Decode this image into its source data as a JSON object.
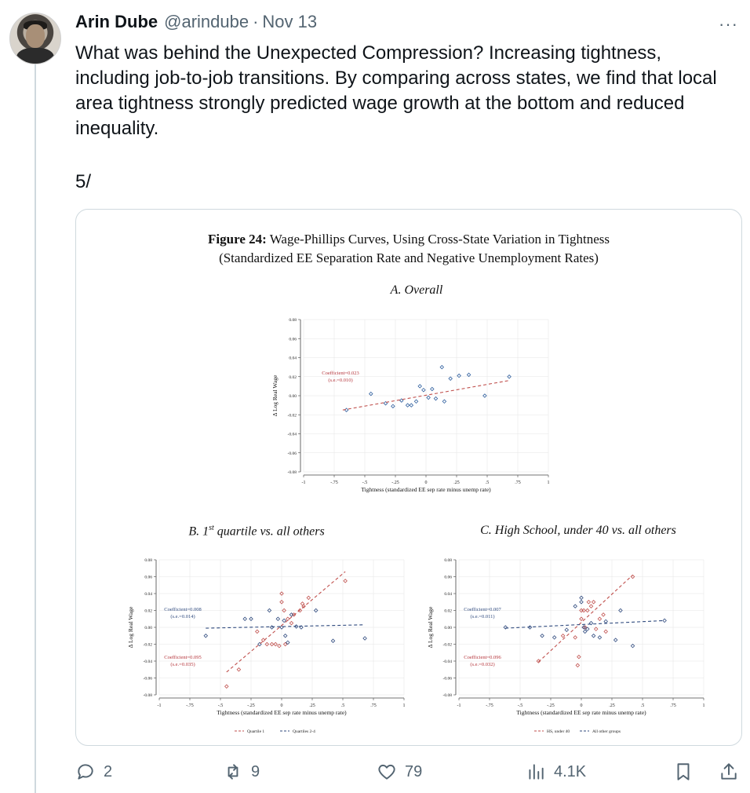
{
  "tweet": {
    "author_name": "Arin Dube",
    "handle": "@arindube",
    "separator": "·",
    "date": "Nov 13",
    "more_label": "···",
    "text_p1": "What was behind the Unexpected Compression? Increasing tightness, including job-to-job transitions. By comparing across states, we find that local area tightness strongly predicted wage growth at the bottom and reduced inequality.",
    "text_p2": "5/"
  },
  "figure": {
    "title_bold": "Figure 24:",
    "title_line1": " Wage-Phillips Curves, Using Cross-State Variation in Tightness",
    "title_line2": "(Standardized EE Separation Rate and Negative Unemployment Rates)",
    "panel_a_title": "A. Overall",
    "panel_b_title": "B. 1st quartile vs. all others",
    "panel_c_title": "C. High School, under 40 vs. all others"
  },
  "chart_data": [
    {
      "type": "scatter",
      "title": "A. Overall",
      "xlabel": "Tightness (standardized EE sep rate minus unemp rate)",
      "ylabel": "Δ Log Real Wage",
      "xlim": [
        -1,
        1
      ],
      "ylim": [
        -0.08,
        0.08
      ],
      "xticks": [
        "-1",
        "-.75",
        "-.5",
        "-.25",
        "0",
        ".25",
        ".5",
        ".75",
        "1"
      ],
      "yticks": [
        "-0.08",
        "-0.06",
        "-0.04",
        "-0.02",
        "0.00",
        "0.02",
        "0.04",
        "0.06",
        "0.08"
      ],
      "grid": true,
      "annotations": [
        {
          "text": "Coefficient=0.023",
          "color": "#b5343a"
        },
        {
          "text": "(s.e.=0.010)",
          "color": "#b5343a"
        }
      ],
      "series": [
        {
          "color": "#2f5f9e",
          "marker": "diamond",
          "points": [
            [
              -0.65,
              -0.015
            ],
            [
              -0.45,
              0.002
            ],
            [
              -0.33,
              -0.008
            ],
            [
              -0.27,
              -0.011
            ],
            [
              -0.2,
              -0.005
            ],
            [
              -0.15,
              -0.01
            ],
            [
              -0.12,
              -0.01
            ],
            [
              -0.08,
              -0.006
            ],
            [
              -0.05,
              0.01
            ],
            [
              -0.02,
              0.006
            ],
            [
              0.02,
              -0.002
            ],
            [
              0.05,
              0.007
            ],
            [
              0.08,
              -0.003
            ],
            [
              0.13,
              0.03
            ],
            [
              0.15,
              -0.006
            ],
            [
              0.2,
              0.018
            ],
            [
              0.27,
              0.021
            ],
            [
              0.35,
              0.022
            ],
            [
              0.48,
              0.0
            ],
            [
              0.68,
              0.02
            ]
          ]
        },
        {
          "type": "line",
          "color": "#c0504d",
          "dashed": true,
          "x": [
            -0.68,
            0.68
          ],
          "y": [
            -0.015,
            0.016
          ]
        }
      ]
    },
    {
      "type": "scatter",
      "title": "B. 1st quartile vs. all others",
      "xlabel": "Tightness (standardized EE sep rate minus unemp rate)",
      "ylabel": "Δ Log Real Wage",
      "xlim": [
        -1,
        1
      ],
      "ylim": [
        -0.08,
        0.08
      ],
      "xticks": [
        "-1",
        "-.75",
        "-.5",
        "-.25",
        "0",
        ".25",
        ".5",
        ".75",
        "1"
      ],
      "yticks": [
        "-0.08",
        "-0.06",
        "-0.04",
        "-0.02",
        "0.00",
        "0.02",
        "0.04",
        "0.06",
        "0.08"
      ],
      "grid": true,
      "annotations": [
        {
          "text": "Coefficient=0.008",
          "color": "#2f4a7e"
        },
        {
          "text": "(s.e.=0.014)",
          "color": "#2f4a7e"
        },
        {
          "text": "Coefficient=0.095",
          "color": "#b5343a"
        },
        {
          "text": "(s.e.=0.035)",
          "color": "#b5343a"
        }
      ],
      "series": [
        {
          "name": "Quartile 1",
          "color": "#c0504d",
          "marker": "diamond",
          "points": [
            [
              -0.45,
              -0.07
            ],
            [
              -0.35,
              -0.05
            ],
            [
              -0.2,
              -0.005
            ],
            [
              -0.15,
              -0.015
            ],
            [
              -0.12,
              -0.02
            ],
            [
              -0.08,
              -0.02
            ],
            [
              -0.05,
              -0.02
            ],
            [
              -0.02,
              -0.022
            ],
            [
              0.0,
              0.04
            ],
            [
              0.0,
              0.03
            ],
            [
              0.02,
              0.02
            ],
            [
              0.03,
              -0.02
            ],
            [
              0.05,
              0.01
            ],
            [
              0.08,
              0.005
            ],
            [
              0.1,
              0.015
            ],
            [
              0.15,
              0.02
            ],
            [
              0.17,
              0.028
            ],
            [
              0.18,
              0.025
            ],
            [
              0.22,
              0.035
            ],
            [
              0.52,
              0.055
            ]
          ]
        },
        {
          "name": "Quartiles 2-4",
          "color": "#2f4a7e",
          "marker": "diamond",
          "points": [
            [
              -0.62,
              -0.01
            ],
            [
              -0.3,
              0.01
            ],
            [
              -0.25,
              0.01
            ],
            [
              -0.18,
              -0.02
            ],
            [
              -0.1,
              0.02
            ],
            [
              -0.08,
              0.0
            ],
            [
              -0.03,
              0.01
            ],
            [
              0.0,
              0.0
            ],
            [
              0.02,
              0.008
            ],
            [
              0.03,
              -0.01
            ],
            [
              0.05,
              -0.018
            ],
            [
              0.08,
              0.015
            ],
            [
              0.12,
              0.001
            ],
            [
              0.16,
              0.0
            ],
            [
              0.28,
              0.02
            ],
            [
              0.42,
              -0.016
            ],
            [
              0.68,
              -0.013
            ]
          ]
        },
        {
          "type": "line",
          "name": "Quartile 1 fit",
          "color": "#c0504d",
          "dashed": true,
          "x": [
            -0.45,
            0.52
          ],
          "y": [
            -0.053,
            0.066
          ]
        },
        {
          "type": "line",
          "name": "Quartiles 2-4 fit",
          "color": "#2f4a7e",
          "dashed": true,
          "x": [
            -0.62,
            0.68
          ],
          "y": [
            -0.001,
            0.003
          ]
        }
      ],
      "legend": {
        "position": "bottom",
        "entries": [
          "Quartile 1",
          "Quartiles 2-4"
        ]
      }
    },
    {
      "type": "scatter",
      "title": "C. High School, under 40 vs. all others",
      "xlabel": "Tightness (standardized EE sep rate minus unemp rate)",
      "ylabel": "Δ Log Real Wage",
      "xlim": [
        -1,
        1
      ],
      "ylim": [
        -0.08,
        0.08
      ],
      "xticks": [
        "-1",
        "-.75",
        "-.5",
        "-.25",
        "0",
        ".25",
        ".5",
        ".75",
        "1"
      ],
      "yticks": [
        "-0.08",
        "-0.06",
        "-0.04",
        "-0.02",
        "0.00",
        "0.02",
        "0.04",
        "0.06",
        "0.08"
      ],
      "grid": true,
      "annotations": [
        {
          "text": "Coefficient=0.007",
          "color": "#2f4a7e"
        },
        {
          "text": "(s.e.=0.011)",
          "color": "#2f4a7e"
        },
        {
          "text": "Coefficient=0.096",
          "color": "#b5343a"
        },
        {
          "text": "(s.e.=0.032)",
          "color": "#b5343a"
        }
      ],
      "series": [
        {
          "name": "HS, under 40",
          "color": "#c0504d",
          "marker": "diamond",
          "points": [
            [
              -0.35,
              -0.04
            ],
            [
              -0.15,
              -0.01
            ],
            [
              -0.05,
              -0.012
            ],
            [
              -0.03,
              -0.045
            ],
            [
              -0.02,
              -0.035
            ],
            [
              0.0,
              0.02
            ],
            [
              0.0,
              0.01
            ],
            [
              0.02,
              0.02
            ],
            [
              0.03,
              0.0
            ],
            [
              0.05,
              0.02
            ],
            [
              0.06,
              0.03
            ],
            [
              0.08,
              0.025
            ],
            [
              0.1,
              0.03
            ],
            [
              0.12,
              -0.002
            ],
            [
              0.15,
              0.01
            ],
            [
              0.18,
              0.015
            ],
            [
              0.2,
              -0.005
            ],
            [
              0.42,
              0.06
            ]
          ]
        },
        {
          "name": "All other groups",
          "color": "#2f4a7e",
          "marker": "diamond",
          "points": [
            [
              -0.62,
              0.0
            ],
            [
              -0.42,
              0.0
            ],
            [
              -0.32,
              -0.01
            ],
            [
              -0.22,
              -0.012
            ],
            [
              -0.12,
              -0.003
            ],
            [
              -0.05,
              0.025
            ],
            [
              0.0,
              0.035
            ],
            [
              0.0,
              0.03
            ],
            [
              0.02,
              0.0
            ],
            [
              0.03,
              -0.005
            ],
            [
              0.05,
              -0.002
            ],
            [
              0.08,
              0.005
            ],
            [
              0.1,
              -0.01
            ],
            [
              0.15,
              -0.012
            ],
            [
              0.2,
              0.007
            ],
            [
              0.28,
              -0.015
            ],
            [
              0.32,
              0.02
            ],
            [
              0.42,
              -0.022
            ],
            [
              0.68,
              0.008
            ]
          ]
        },
        {
          "type": "line",
          "name": "HS, under 40 fit",
          "color": "#c0504d",
          "dashed": true,
          "x": [
            -0.35,
            0.42
          ],
          "y": [
            -0.041,
            0.062
          ]
        },
        {
          "type": "line",
          "name": "All other groups fit",
          "color": "#2f4a7e",
          "dashed": true,
          "x": [
            -0.62,
            0.68
          ],
          "y": [
            -0.001,
            0.008
          ]
        }
      ],
      "legend": {
        "position": "bottom",
        "entries": [
          "HS, under 40",
          "All other groups"
        ]
      }
    }
  ],
  "actions": {
    "replies": "2",
    "reposts": "9",
    "likes": "79",
    "views": "4.1K"
  },
  "icons": {
    "reply": "reply-icon",
    "repost": "repost-icon",
    "like": "heart-icon",
    "views": "views-icon",
    "bookmark": "bookmark-icon",
    "share": "share-icon"
  },
  "colors": {
    "text_primary": "#0f1419",
    "text_secondary": "#536471",
    "border": "#cfd9de",
    "chart_red": "#c0504d",
    "chart_blue": "#2f4a7e",
    "chart_blue_light": "#2f5f9e"
  }
}
